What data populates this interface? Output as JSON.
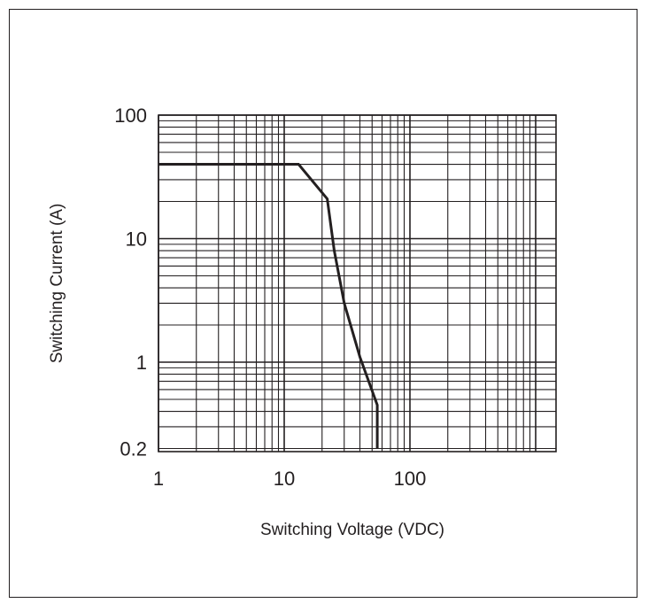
{
  "chart_data": {
    "type": "line",
    "title": "",
    "xlabel": "Switching Voltage (VDC)",
    "ylabel": "Switching Current (A)",
    "x_scale": "log",
    "y_scale": "log",
    "xlim": [
      1,
      1000
    ],
    "ylim": [
      0.2,
      100
    ],
    "grid": true,
    "x_ticks": [
      {
        "value": 1,
        "label": "1"
      },
      {
        "value": 10,
        "label": "10"
      },
      {
        "value": 100,
        "label": "100"
      }
    ],
    "y_ticks": [
      {
        "value": 100,
        "label": "100"
      },
      {
        "value": 10,
        "label": "10"
      },
      {
        "value": 1,
        "label": "1"
      },
      {
        "value": 0.2,
        "label": "0.2"
      }
    ],
    "series": [
      {
        "x": [
          1,
          13,
          22,
          25,
          30,
          40,
          55,
          55
        ],
        "y": [
          40,
          40,
          21,
          8,
          3,
          1.1,
          0.45,
          0.2
        ]
      }
    ],
    "colors": {
      "line": "#231f20",
      "grid": "#231f20",
      "frame": "#231f20"
    }
  }
}
